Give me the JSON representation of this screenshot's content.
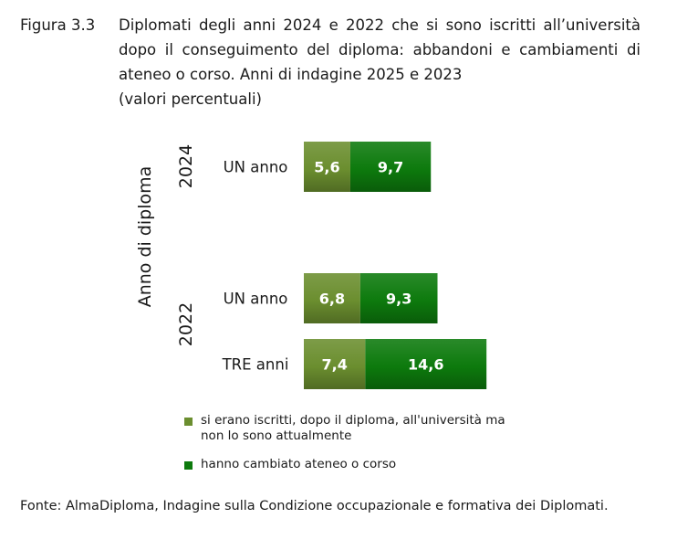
{
  "figure": {
    "label": "Figura 3.3",
    "title": "Diplomati degli anni 2024 e 2022 che si sono iscritti all’università dopo il conseguimento del diploma: abbandoni e cambiamenti di ateneo o corso. Anni di indagine 2025 e 2023",
    "subtitle": "(valori percentuali)"
  },
  "source": "Fonte: AlmaDiploma, Indagine sulla Condizione occupazionale e formativa dei Diplomati.",
  "chart_data": {
    "type": "bar",
    "orientation": "horizontal",
    "stacked": true,
    "ylabel": "Anno di diploma",
    "groups": [
      {
        "label": "2024",
        "rows": [
          "UN anno"
        ]
      },
      {
        "label": "2022",
        "rows": [
          "UN anno",
          "TRE anni"
        ]
      }
    ],
    "categories": [
      "UN anno",
      "UN anno",
      "TRE anni"
    ],
    "series": [
      {
        "name": "si erano iscritti, dopo il diploma, all'università ma non lo sono attualmente",
        "color": "#6b8e2f",
        "values": [
          5.6,
          6.8,
          7.4
        ],
        "labels": [
          "5,6",
          "6,8",
          "7,4"
        ]
      },
      {
        "name": "hanno cambiato ateneo o corso",
        "color": "#0d7a0d",
        "values": [
          9.7,
          9.3,
          14.6
        ],
        "labels": [
          "9,7",
          "9,3",
          "14,6"
        ]
      }
    ],
    "grid": false,
    "legend_position": "bottom"
  }
}
